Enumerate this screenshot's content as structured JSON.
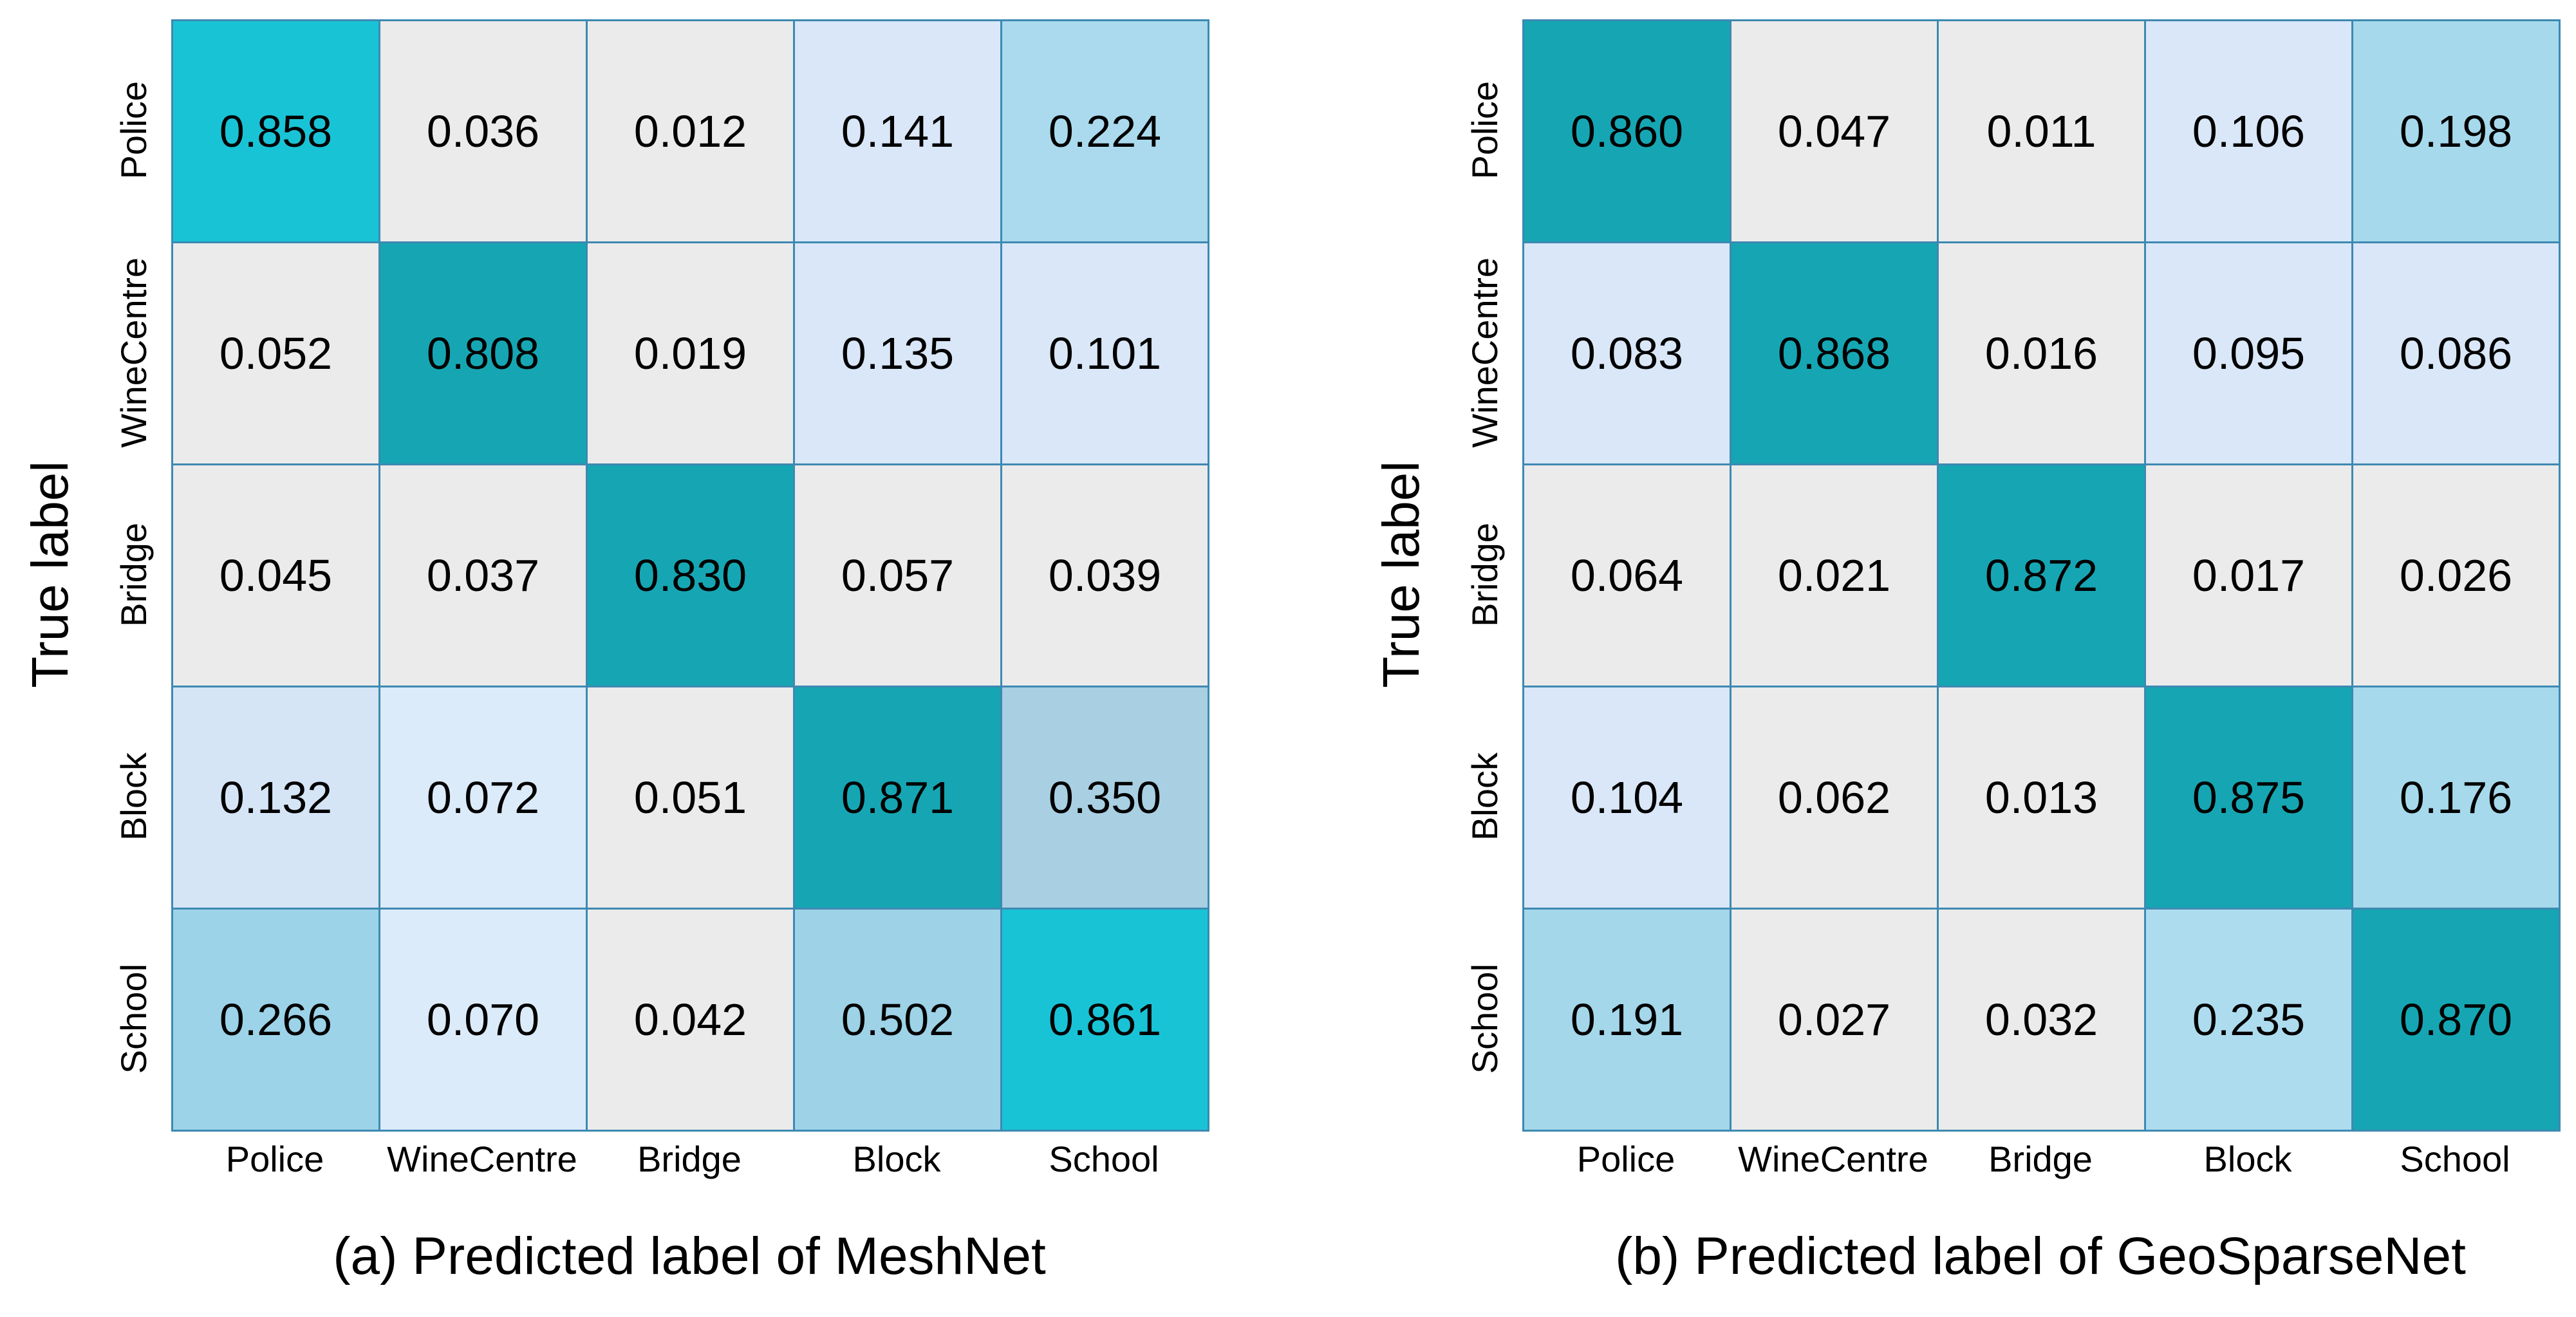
{
  "figure": {
    "background": "#ffffff",
    "border_color": "#3d89b2",
    "text_color": "#000000",
    "colormap_hint": {
      "low": "#ebebeb",
      "mid_low": "#d9e7f8",
      "mid": "#a7d9ec",
      "mid_high": "#9cd3e8",
      "diagonal_teal": "#16a6b3",
      "diagonal_cyan": "#19c3d6"
    }
  },
  "chart_data": [
    {
      "type": "heatmap",
      "title": "(a) Predicted label of MeshNet",
      "xlabel": "",
      "ylabel": "True label",
      "x_tick_labels": [
        "Police",
        "WineCentre",
        "Bridge",
        "Block",
        "School"
      ],
      "y_tick_labels": [
        "Police",
        "WineCentre",
        "Bridge",
        "Block",
        "School"
      ],
      "value_range": [
        0,
        1
      ],
      "grid_on": true,
      "values": [
        [
          0.858,
          0.036,
          0.012,
          0.141,
          0.224
        ],
        [
          0.052,
          0.808,
          0.019,
          0.135,
          0.101
        ],
        [
          0.045,
          0.037,
          0.83,
          0.057,
          0.039
        ],
        [
          0.132,
          0.072,
          0.051,
          0.871,
          0.35
        ],
        [
          0.266,
          0.07,
          0.042,
          0.502,
          0.861
        ]
      ],
      "cell_labels": [
        [
          "0.858",
          "0.036",
          "0.012",
          "0.141",
          "0.224"
        ],
        [
          "0.052",
          "0.808",
          "0.019",
          "0.135",
          "0.101"
        ],
        [
          "0.045",
          "0.037",
          "0.830",
          "0.057",
          "0.039"
        ],
        [
          "0.132",
          "0.072",
          "0.051",
          "0.871",
          "0.350"
        ],
        [
          "0.266",
          "0.070",
          "0.042",
          "0.502",
          "0.861"
        ]
      ],
      "cell_colors": [
        [
          "#19c3d6",
          "#ebebeb",
          "#ebebeb",
          "#d9e7f8",
          "#abdaee"
        ],
        [
          "#ebebeb",
          "#16a6b3",
          "#ebebeb",
          "#d9e7f8",
          "#d9e7f8"
        ],
        [
          "#ebebeb",
          "#ebebeb",
          "#16a6b3",
          "#ebebeb",
          "#ebebeb"
        ],
        [
          "#d6e5f6",
          "#dcebfa",
          "#ebebeb",
          "#16a6b3",
          "#a9cfe2"
        ],
        [
          "#9cd3e8",
          "#dcebfa",
          "#ebebeb",
          "#9dd2e7",
          "#19c3d6"
        ]
      ]
    },
    {
      "type": "heatmap",
      "title": "(b) Predicted label of GeoSparseNet",
      "xlabel": "",
      "ylabel": "True label",
      "x_tick_labels": [
        "Police",
        "WineCentre",
        "Bridge",
        "Block",
        "School"
      ],
      "y_tick_labels": [
        "Police",
        "WineCentre",
        "Bridge",
        "Block",
        "School"
      ],
      "value_range": [
        0,
        1
      ],
      "grid_on": true,
      "values": [
        [
          0.86,
          0.047,
          0.011,
          0.106,
          0.198
        ],
        [
          0.083,
          0.868,
          0.016,
          0.095,
          0.086
        ],
        [
          0.064,
          0.021,
          0.872,
          0.017,
          0.026
        ],
        [
          0.104,
          0.062,
          0.013,
          0.875,
          0.176
        ],
        [
          0.191,
          0.027,
          0.032,
          0.235,
          0.87
        ]
      ],
      "cell_labels": [
        [
          "0.860",
          "0.047",
          "0.011",
          "0.106",
          "0.198"
        ],
        [
          "0.083",
          "0.868",
          "0.016",
          "0.095",
          "0.086"
        ],
        [
          "0.064",
          "0.021",
          "0.872",
          "0.017",
          "0.026"
        ],
        [
          "0.104",
          "0.062",
          "0.013",
          "0.875",
          "0.176"
        ],
        [
          "0.191",
          "0.027",
          "0.032",
          "0.235",
          "0.870"
        ]
      ],
      "cell_colors": [
        [
          "#16a6b3",
          "#ebebeb",
          "#ebebeb",
          "#d9e7f8",
          "#a7d9ec"
        ],
        [
          "#d9e7f8",
          "#16a6b3",
          "#ebebeb",
          "#d9e7f8",
          "#d9e7f8"
        ],
        [
          "#ebebeb",
          "#ebebeb",
          "#16a6b3",
          "#ebebeb",
          "#ebebeb"
        ],
        [
          "#d9e7f8",
          "#ebebeb",
          "#ebebeb",
          "#16a6b3",
          "#a7d9ec"
        ],
        [
          "#a4d7ea",
          "#ebebeb",
          "#ebebeb",
          "#aedcef",
          "#16a6b3"
        ]
      ]
    }
  ]
}
